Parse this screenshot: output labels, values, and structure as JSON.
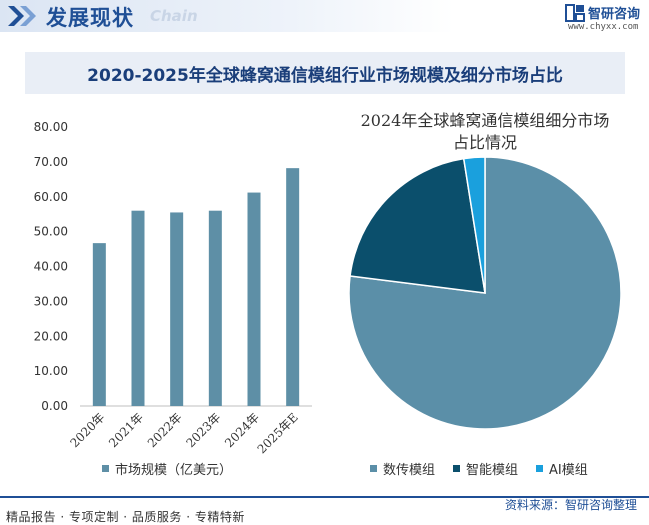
{
  "header": {
    "title": "发展现状",
    "ghost_text": "Chain",
    "brand_name": "智研咨询",
    "brand_url": "www.chyxx.com"
  },
  "main_title": "2020-2025年全球蜂窝通信模组行业市场规模及细分市场占比",
  "chart_data": [
    {
      "type": "bar",
      "categories": [
        "2020年",
        "2021年",
        "2022年",
        "2023年",
        "2024年",
        "2025年E"
      ],
      "values": [
        46.7,
        56.0,
        55.5,
        56.0,
        61.2,
        68.2
      ],
      "ylim": [
        0,
        80
      ],
      "yticks": [
        "0.00",
        "10.00",
        "20.00",
        "30.00",
        "40.00",
        "50.00",
        "60.00",
        "70.00",
        "80.00"
      ],
      "series_name": "市场规模（亿美元）",
      "color": "#5e8fa6",
      "title": "",
      "xlabel": "",
      "ylabel": ""
    },
    {
      "type": "pie",
      "title": "2024年全球蜂窝通信模组细分市场占比情况",
      "labels": [
        "数传模组",
        "智能模组",
        "AI模组"
      ],
      "values": [
        77,
        20.5,
        2.5
      ],
      "colors": [
        "#5b8fa8",
        "#0b4f6c",
        "#1aa0dd"
      ]
    }
  ],
  "footer": {
    "left": "精品报告 · 专项定制 · 品质服务 · 专精特新",
    "right": "资料来源：智研咨询整理"
  }
}
